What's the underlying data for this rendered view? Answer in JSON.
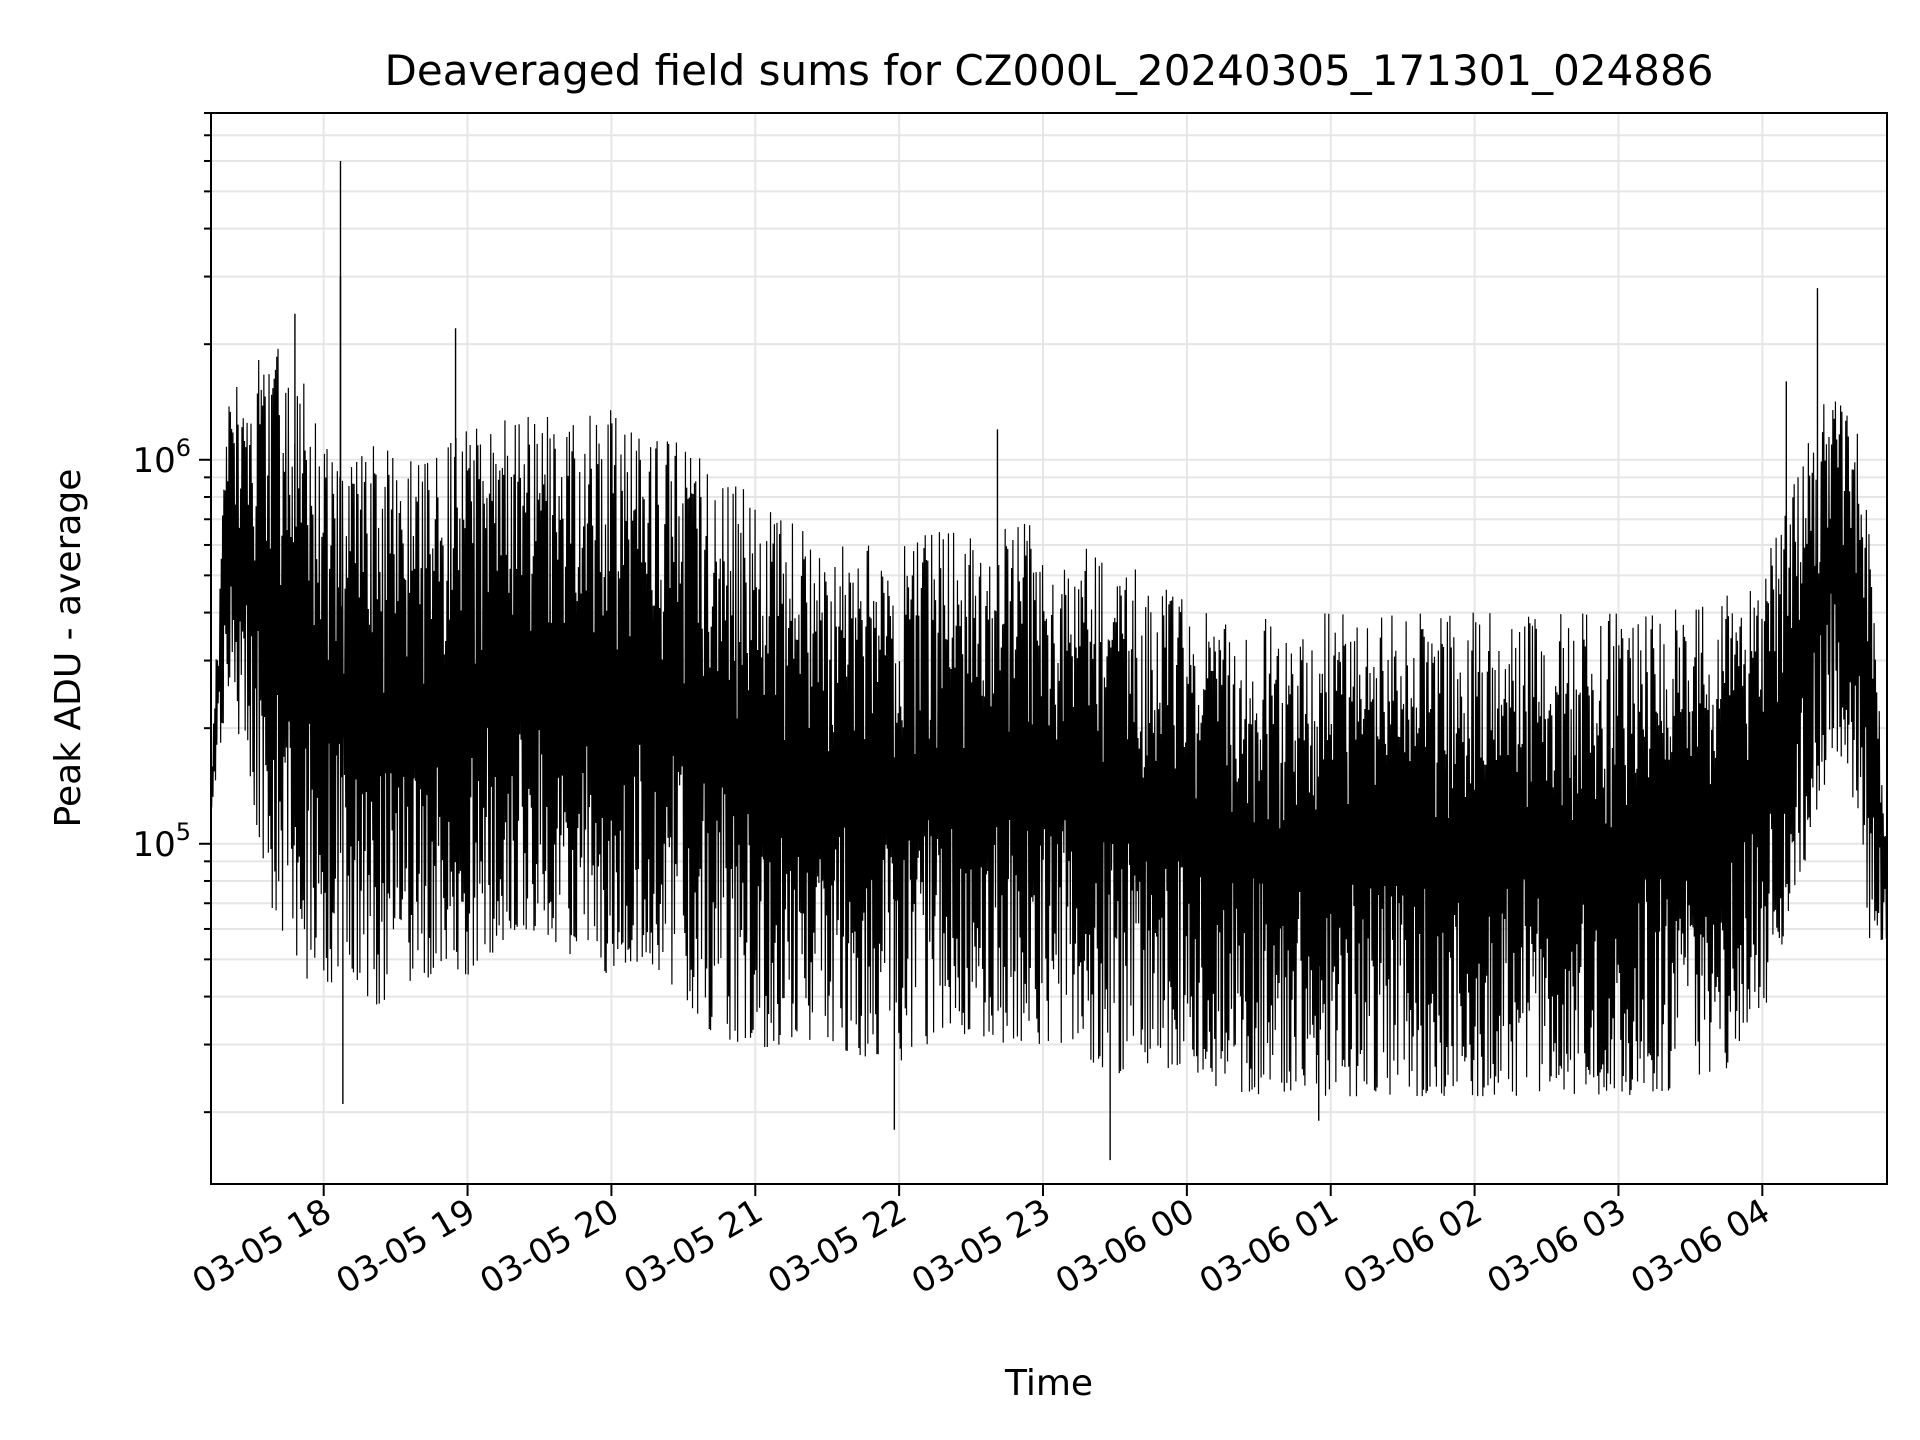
{
  "chart_data": {
    "type": "line",
    "title": "Deaveraged field sums for CZ000L_20240305_171301_024886",
    "xlabel": "Time",
    "ylabel": "Peak ADU - average",
    "yscale": "log",
    "ylim": [
      13000,
      8000000
    ],
    "xlim": [
      "03-05 17:13",
      "03-06 04:52"
    ],
    "grid": true,
    "legend": "none",
    "line_color": "#000000",
    "x_ticks": [
      {
        "t": "03-05 18:00",
        "label": "03-05 18"
      },
      {
        "t": "03-05 19:00",
        "label": "03-05 19"
      },
      {
        "t": "03-05 20:00",
        "label": "03-05 20"
      },
      {
        "t": "03-05 21:00",
        "label": "03-05 21"
      },
      {
        "t": "03-05 22:00",
        "label": "03-05 22"
      },
      {
        "t": "03-05 23:00",
        "label": "03-05 23"
      },
      {
        "t": "03-06 00:00",
        "label": "03-06 00"
      },
      {
        "t": "03-06 01:00",
        "label": "03-06 01"
      },
      {
        "t": "03-06 02:00",
        "label": "03-06 02"
      },
      {
        "t": "03-06 03:00",
        "label": "03-06 03"
      },
      {
        "t": "03-06 04:00",
        "label": "03-06 04"
      }
    ],
    "y_ticks": [
      {
        "value": 100000,
        "base": "10",
        "exp": "5"
      },
      {
        "value": 1000000,
        "base": "10",
        "exp": "6"
      }
    ],
    "series": [
      {
        "x": [
          "03-05 17:13",
          "03-05 17:20",
          "03-05 17:30",
          "03-05 17:40",
          "03-05 17:50",
          "03-05 18:00",
          "03-05 18:10",
          "03-05 18:20",
          "03-05 18:30",
          "03-05 18:40",
          "03-05 18:50",
          "03-05 19:00",
          "03-05 19:15",
          "03-05 19:30",
          "03-05 19:45",
          "03-05 20:00",
          "03-05 20:15",
          "03-05 20:30",
          "03-05 20:45",
          "03-05 21:00",
          "03-05 21:15",
          "03-05 21:30",
          "03-05 21:45",
          "03-05 22:00",
          "03-05 22:15",
          "03-05 22:30",
          "03-05 22:45",
          "03-05 23:00",
          "03-05 23:15",
          "03-05 23:30",
          "03-05 23:45",
          "03-06 00:00",
          "03-06 00:15",
          "03-06 00:30",
          "03-06 00:45",
          "03-06 01:00",
          "03-06 01:15",
          "03-06 01:30",
          "03-06 01:45",
          "03-06 02:00",
          "03-06 02:15",
          "03-06 02:30",
          "03-06 02:45",
          "03-06 03:00",
          "03-06 03:15",
          "03-06 03:30",
          "03-06 03:45",
          "03-06 04:00",
          "03-06 04:10",
          "03-06 04:20",
          "03-06 04:30",
          "03-06 04:40",
          "03-06 04:45",
          "03-06 04:52"
        ],
        "low": [
          120000,
          250000,
          130000,
          60000,
          45000,
          40000,
          50000,
          36000,
          38000,
          42000,
          50000,
          45000,
          55000,
          60000,
          50000,
          45000,
          50000,
          40000,
          30000,
          28000,
          30000,
          30000,
          28000,
          27000,
          30000,
          32000,
          30000,
          30000,
          28000,
          25000,
          27000,
          25000,
          23000,
          22000,
          22000,
          22000,
          22000,
          22000,
          22000,
          22000,
          22000,
          22000,
          22000,
          22000,
          22000,
          24000,
          26000,
          35000,
          60000,
          100000,
          180000,
          120000,
          50000,
          55000
        ],
        "high": [
          150000,
          1500000,
          1800000,
          2000000,
          1700000,
          1200000,
          1000000,
          1100000,
          1100000,
          1000000,
          1100000,
          1200000,
          1300000,
          1300000,
          1300000,
          1400000,
          1200000,
          1100000,
          950000,
          800000,
          700000,
          600000,
          600000,
          600000,
          650000,
          650000,
          700000,
          700000,
          600000,
          550000,
          500000,
          450000,
          400000,
          400000,
          400000,
          400000,
          400000,
          400000,
          400000,
          400000,
          400000,
          400000,
          400000,
          400000,
          400000,
          420000,
          450000,
          500000,
          800000,
          1200000,
          1600000,
          1200000,
          600000,
          100000
        ],
        "spikes": [
          {
            "t": "03-05 18:07",
            "value": 6000000
          },
          {
            "t": "03-05 18:07",
            "value": 3000000
          },
          {
            "t": "03-05 18:55",
            "value": 2200000
          },
          {
            "t": "03-05 17:48",
            "value": 2400000
          },
          {
            "t": "03-05 22:41",
            "value": 1200000
          },
          {
            "t": "03-06 04:23",
            "value": 2800000
          },
          {
            "t": "03-06 04:10",
            "value": 1600000
          },
          {
            "t": "03-05 23:28",
            "value": 15000
          },
          {
            "t": "03-05 18:08",
            "value": 21000
          },
          {
            "t": "03-05 21:58",
            "value": 18000
          },
          {
            "t": "03-06 00:55",
            "value": 19000
          }
        ]
      }
    ]
  }
}
